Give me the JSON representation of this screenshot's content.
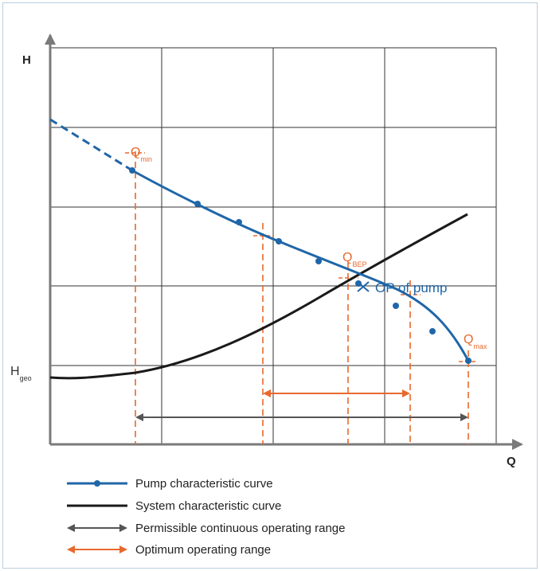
{
  "axes": {
    "y_label": "H",
    "x_label": "Q"
  },
  "labels": {
    "q_min": {
      "main": "Q",
      "sub": "min"
    },
    "q_bep": {
      "main": "Q",
      "sub": "BEP"
    },
    "q_max": {
      "main": "Q",
      "sub": "max"
    },
    "h_geo": {
      "main": "H",
      "sub": "geo"
    },
    "op": "OP of pump"
  },
  "legend": [
    {
      "label": "Pump characteristic curve",
      "symbol": "blue-line-dots"
    },
    {
      "label": "System characteristic curve",
      "symbol": "black-line"
    },
    {
      "label": "Permissible continuous operating range",
      "symbol": "grey-double-arrow"
    },
    {
      "label": "Optimum operating range",
      "symbol": "orange-double-arrow"
    }
  ],
  "colors": {
    "pump_curve": "#1f66a8",
    "system_curve": "#1a1a1a",
    "permissible_range": "#555555",
    "optimum_range": "#e8692d",
    "grid": "#333333",
    "frame": "#b9cfe1"
  }
}
